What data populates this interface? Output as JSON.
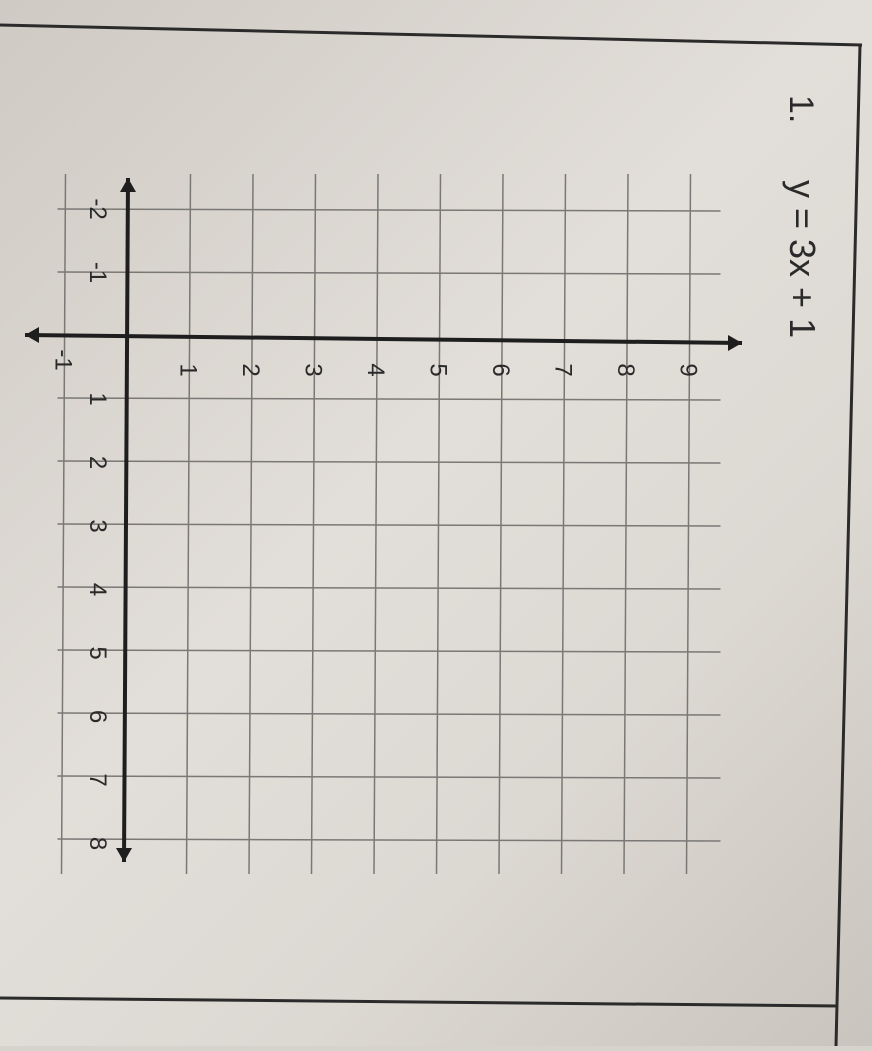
{
  "problem": {
    "number": "1.",
    "equation": "y = 3x + 1"
  },
  "grid": {
    "x_labels": [
      "-2",
      "-1",
      "1",
      "2",
      "3",
      "4",
      "5",
      "6",
      "7",
      "8"
    ],
    "y_labels": [
      "1",
      "2",
      "3",
      "4",
      "5",
      "6",
      "7",
      "8",
      "9"
    ],
    "y_negative_label": "-1",
    "x_range": [
      -2,
      8
    ],
    "y_range": [
      -1,
      9
    ],
    "line_color": "#7a7875",
    "axis_color": "#1e1e1e"
  }
}
